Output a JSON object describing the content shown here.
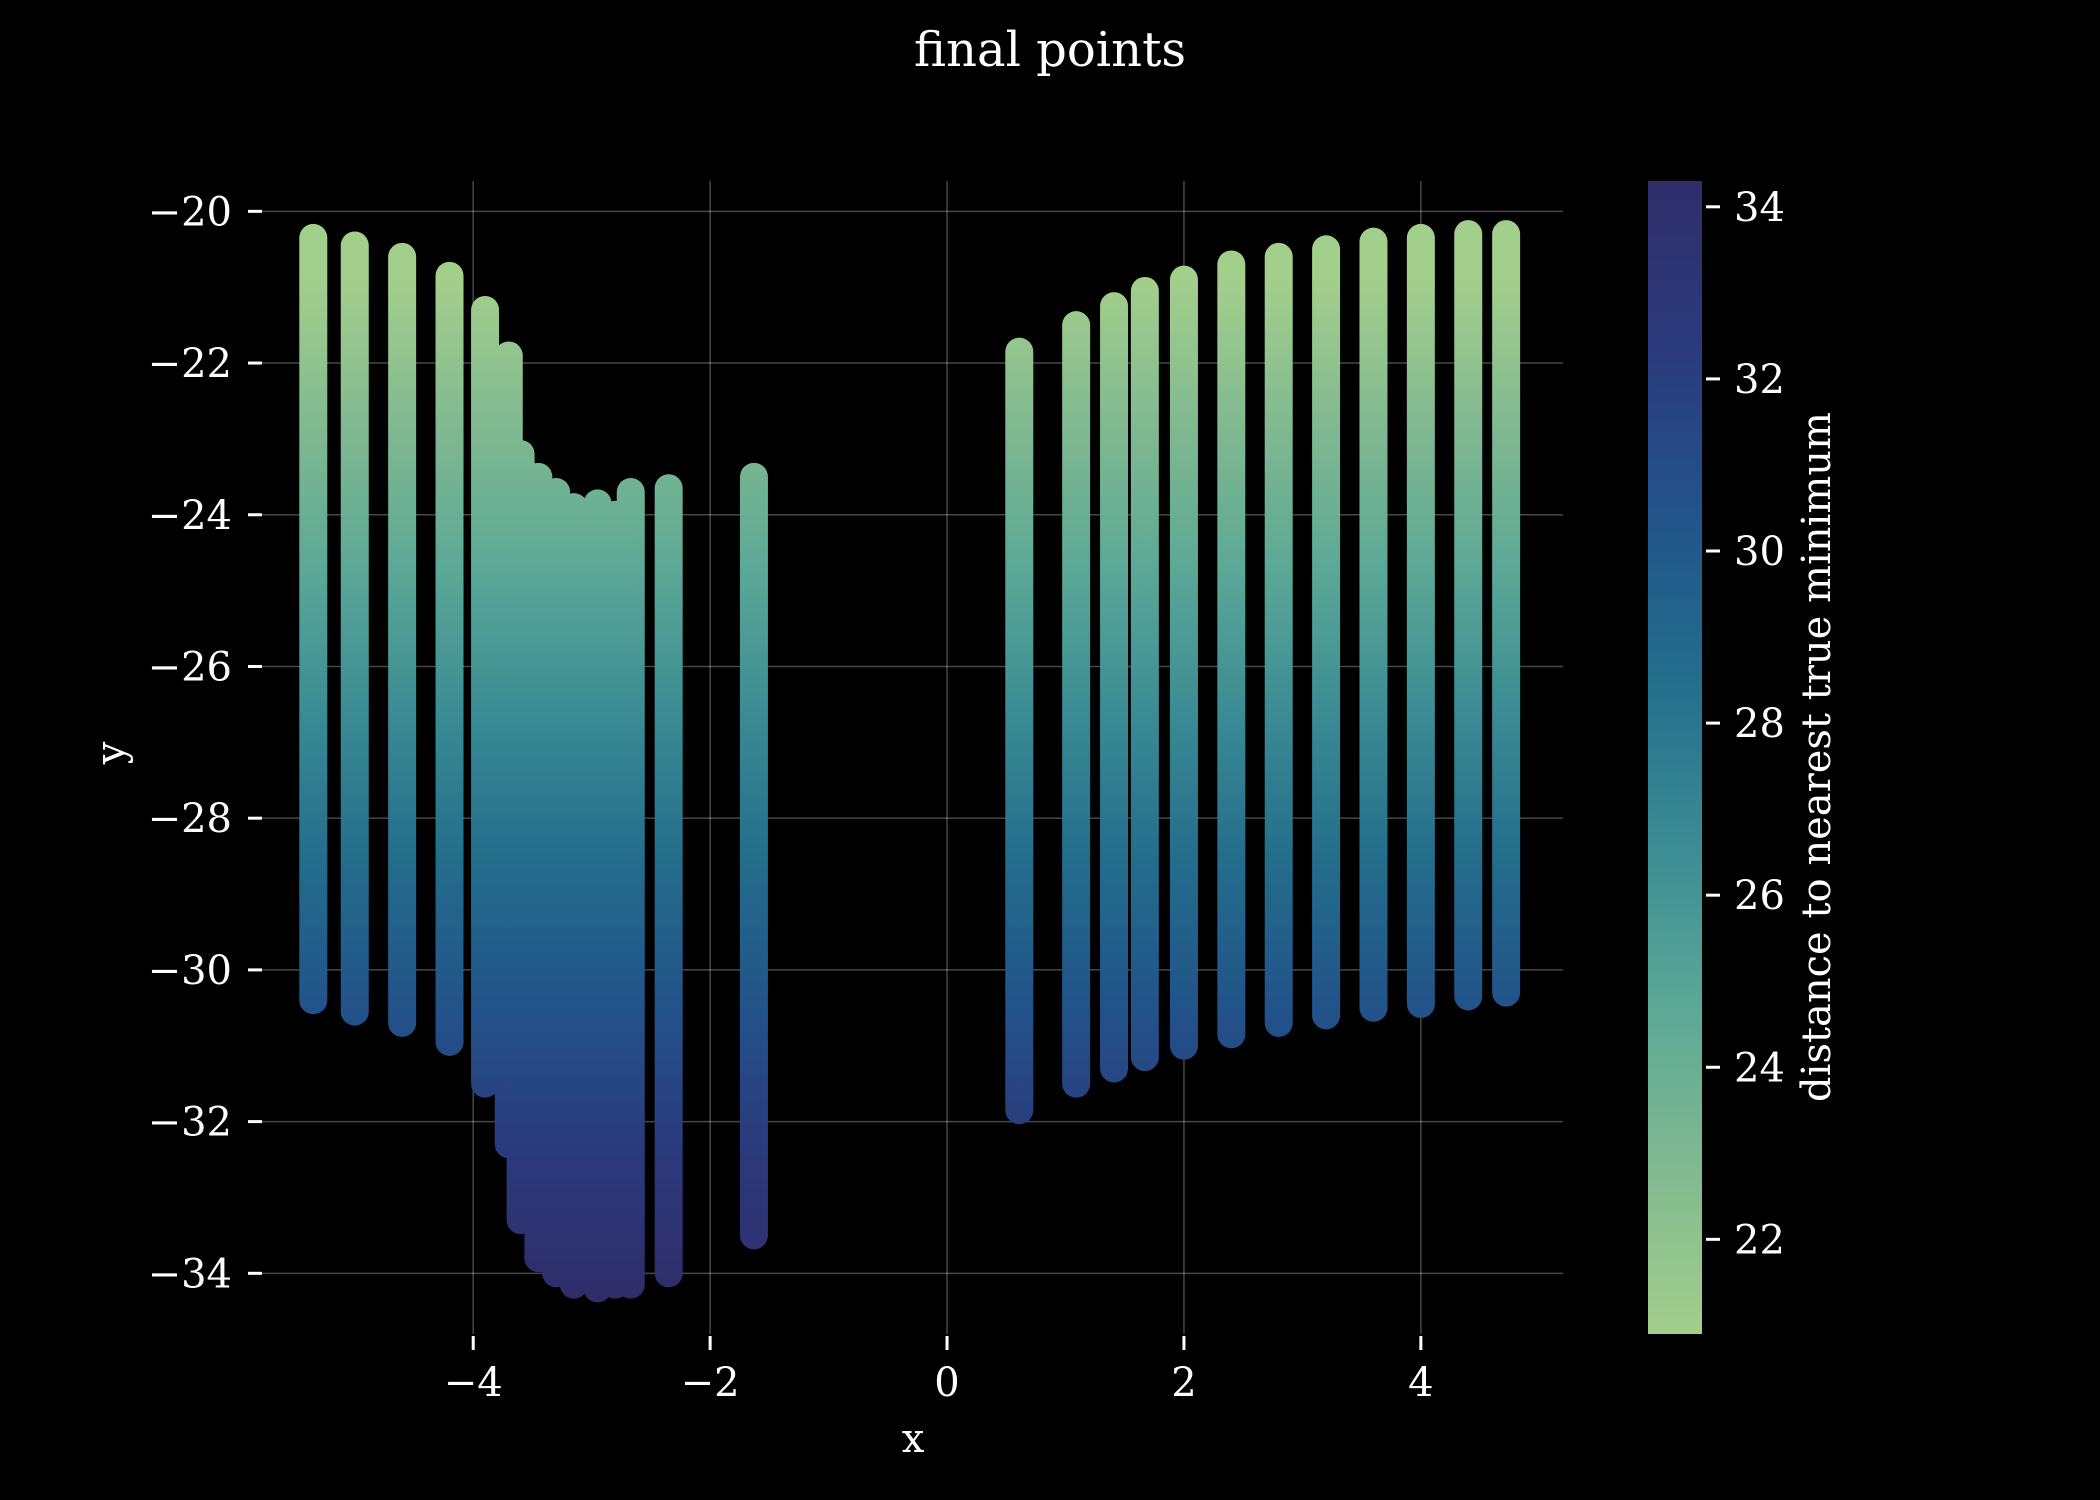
{
  "chart_data": {
    "type": "scatter",
    "title": "final points",
    "xlabel": "x",
    "ylabel": "y",
    "xlim": [
      -5.8,
      5.2
    ],
    "ylim": [
      -34.8,
      -19.6
    ],
    "x_ticks": [
      "−4",
      "−2",
      "0",
      "2",
      "4"
    ],
    "x_tick_values": [
      -4,
      -2,
      0,
      2,
      4
    ],
    "y_ticks": [
      "−20",
      "−22",
      "−24",
      "−26",
      "−28",
      "−30",
      "−32",
      "−34"
    ],
    "y_tick_values": [
      -20,
      -22,
      -24,
      -26,
      -28,
      -30,
      -32,
      -34
    ],
    "grid": true,
    "colorbar": {
      "label": "distance to nearest true minimum",
      "range": [
        20.9,
        34.3
      ],
      "ticks": [
        "22",
        "24",
        "26",
        "28",
        "30",
        "32",
        "34"
      ],
      "tick_values": [
        22,
        24,
        26,
        28,
        30,
        32,
        34
      ],
      "colors": [
        "#a3cf8c",
        "#81b990",
        "#5ba896",
        "#3a8b94",
        "#236d8c",
        "#22538a",
        "#2b3a7c",
        "#2f2d6a"
      ]
    },
    "columns": [
      {
        "x": -5.35,
        "y_top": -20.35,
        "y_bottom": -30.4
      },
      {
        "x": -5.0,
        "y_top": -20.45,
        "y_bottom": -30.55
      },
      {
        "x": -4.6,
        "y_top": -20.6,
        "y_bottom": -30.7
      },
      {
        "x": -4.2,
        "y_top": -20.85,
        "y_bottom": -30.95
      },
      {
        "x": -3.9,
        "y_top": -21.3,
        "y_bottom": -31.5
      },
      {
        "x": -3.7,
        "y_top": -21.9,
        "y_bottom": -32.3
      },
      {
        "x": -3.6,
        "y_top": -23.2,
        "y_bottom": -33.3
      },
      {
        "x": -3.45,
        "y_top": -23.5,
        "y_bottom": -33.8
      },
      {
        "x": -3.3,
        "y_top": -23.7,
        "y_bottom": -34.0
      },
      {
        "x": -3.15,
        "y_top": -23.9,
        "y_bottom": -34.15
      },
      {
        "x": -2.95,
        "y_top": -23.85,
        "y_bottom": -34.2
      },
      {
        "x": -2.8,
        "y_top": -24.0,
        "y_bottom": -34.15
      },
      {
        "x": -2.67,
        "y_top": -23.7,
        "y_bottom": -34.15
      },
      {
        "x": -2.35,
        "y_top": -23.65,
        "y_bottom": -34.0
      },
      {
        "x": -1.63,
        "y_top": -23.5,
        "y_bottom": -33.5
      },
      {
        "x": 0.61,
        "y_top": -21.85,
        "y_bottom": -31.85
      },
      {
        "x": 1.09,
        "y_top": -21.5,
        "y_bottom": -31.5
      },
      {
        "x": 1.41,
        "y_top": -21.25,
        "y_bottom": -31.3
      },
      {
        "x": 1.67,
        "y_top": -21.05,
        "y_bottom": -31.15
      },
      {
        "x": 2.0,
        "y_top": -20.9,
        "y_bottom": -31.0
      },
      {
        "x": 2.4,
        "y_top": -20.7,
        "y_bottom": -30.85
      },
      {
        "x": 2.8,
        "y_top": -20.6,
        "y_bottom": -30.7
      },
      {
        "x": 3.2,
        "y_top": -20.5,
        "y_bottom": -30.6
      },
      {
        "x": 3.6,
        "y_top": -20.4,
        "y_bottom": -30.5
      },
      {
        "x": 4.0,
        "y_top": -20.35,
        "y_bottom": -30.45
      },
      {
        "x": 4.4,
        "y_top": -20.3,
        "y_bottom": -30.35
      },
      {
        "x": 4.72,
        "y_top": -20.3,
        "y_bottom": -30.3
      }
    ]
  }
}
